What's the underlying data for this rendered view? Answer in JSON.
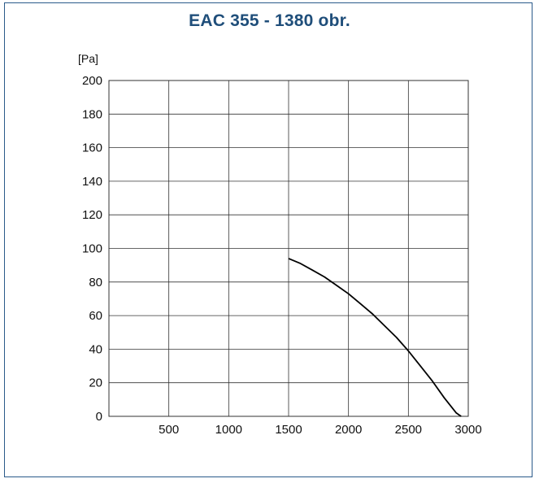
{
  "chart_data": {
    "type": "line",
    "title": "EAC 355 - 1380 obr.",
    "ylabel": "[Pa]",
    "xlabel": "",
    "xlim": [
      0,
      3000
    ],
    "ylim": [
      0,
      200
    ],
    "x_ticks": [
      500,
      1000,
      1500,
      2000,
      2500,
      3000
    ],
    "y_ticks": [
      0,
      20,
      40,
      60,
      80,
      100,
      120,
      140,
      160,
      180,
      200
    ],
    "grid": true,
    "series": [
      {
        "color": "#000000",
        "x": [
          1500,
          1600,
          1700,
          1800,
          1900,
          2000,
          2100,
          2200,
          2300,
          2400,
          2500,
          2600,
          2700,
          2800,
          2900,
          2940
        ],
        "y": [
          94,
          91,
          87,
          83,
          78,
          73,
          67,
          61,
          54,
          47,
          39,
          30,
          21,
          11,
          2,
          0
        ]
      }
    ]
  },
  "colors": {
    "frame": "#2a5a8a",
    "title": "#1f4e7a",
    "grid": "#333333",
    "curve": "#000000"
  }
}
